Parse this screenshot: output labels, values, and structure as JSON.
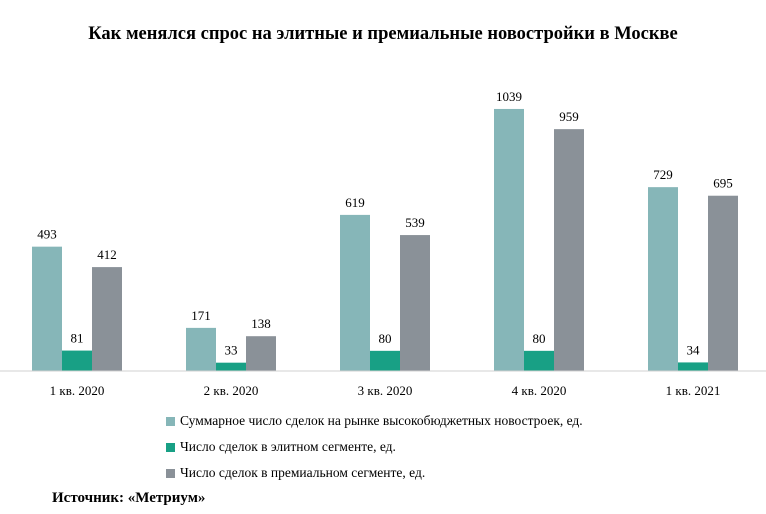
{
  "colors": {
    "total": "#86b6b8",
    "elite": "#18a085",
    "premium": "#8a9198"
  },
  "chart_data": {
    "type": "bar",
    "title": "Как менялся спрос на элитные и премиальные новостройки  в Москве",
    "categories": [
      "1 кв. 2020",
      "2 кв. 2020",
      "3 кв. 2020",
      "4 кв. 2020",
      "1 кв. 2021"
    ],
    "series": [
      {
        "name": "Суммарное число сделок на рынке высокобюджетных новостроек, ед.",
        "key": "total",
        "values": [
          493,
          171,
          619,
          1039,
          729
        ]
      },
      {
        "name": "Число сделок в элитном сегменте, ед.",
        "key": "elite",
        "values": [
          81,
          33,
          80,
          80,
          34
        ]
      },
      {
        "name": "Число сделок в премиальном сегменте, ед.",
        "key": "premium",
        "values": [
          412,
          138,
          539,
          959,
          695
        ]
      }
    ],
    "ylim": [
      0,
      1100
    ],
    "grid": false,
    "legend_position": "bottom"
  },
  "source": "Источник: «Метриум»"
}
